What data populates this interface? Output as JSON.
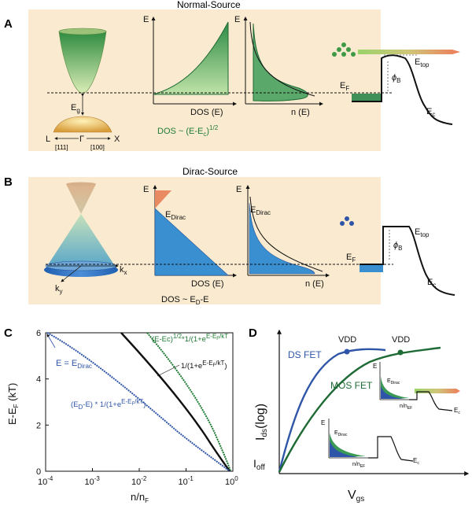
{
  "panel_a": {
    "letter": "A",
    "title": "Normal-Source",
    "band_labels": {
      "eg": "E",
      "eg_sub": "g",
      "L": "L",
      "gamma": "Γ",
      "X": "X",
      "dir1": "[111]",
      "dir2": "[100]"
    },
    "dos": {
      "ylabel": "E",
      "xlabel": "DOS (E)",
      "formula": "DOS ~ (E-E",
      "formula_sub": "c",
      "formula_end": ")",
      "formula_sup": "1/2"
    },
    "occ": {
      "ylabel": "E",
      "xlabel": "n (E)"
    },
    "band_diagram": {
      "ef": "E",
      "ef_sub": "F",
      "phi": "ϕ",
      "phi_sub": "B",
      "etop": "E",
      "etop_sub": "top",
      "ec": "E",
      "ec_sub": "c"
    }
  },
  "panel_b": {
    "letter": "B",
    "title": "Dirac-Source",
    "axes": {
      "kx": "k",
      "kx_sub": "x",
      "ky": "k",
      "ky_sub": "y"
    },
    "dos": {
      "ylabel": "E",
      "edirac": "E",
      "edirac_sub": "Dirac",
      "xlabel": "DOS (E)",
      "formula": "DOS ~ E",
      "formula_sub": "D",
      "formula_end": "-E"
    },
    "occ": {
      "ylabel": "E",
      "edirac": "E",
      "edirac_sub": "Dirac",
      "xlabel": "n (E)"
    },
    "band_diagram": {
      "ef": "E",
      "ef_sub": "F",
      "phi": "ϕ",
      "phi_sub": "B",
      "etop": "E",
      "etop_sub": "top",
      "ec": "E",
      "ec_sub": "c"
    }
  },
  "panel_c": {
    "letter": "C",
    "ylabel": "E-E",
    "ylabel_sub": "F",
    "ylabel_end": " (kT)",
    "xlabel": "n/n",
    "xlabel_sub": "F",
    "yticks": [
      "0",
      "2",
      "4",
      "6"
    ],
    "xticks": [
      {
        "base": "10",
        "exp": "-4"
      },
      {
        "base": "10",
        "exp": "-3"
      },
      {
        "base": "10",
        "exp": "-2"
      },
      {
        "base": "10",
        "exp": "-1"
      },
      {
        "base": "10",
        "exp": "0"
      }
    ],
    "annotations": {
      "edirac": "E = E",
      "edirac_sub": "Dirac",
      "green": "(E-Ec)",
      "green_sup": "1/2",
      "green_mid": "*1/(1+e",
      "green_sup2": "E-E",
      "green_sub2": "F",
      "green_end": "/kT",
      "black": "1/(1+e",
      "black_sup": "E-E",
      "black_sub": "F",
      "black_end": "/kT",
      "black_close": ")",
      "blue": "(E",
      "blue_sub": "D",
      "blue_mid": "-E) * 1/(1+e",
      "blue_sup": "E-E",
      "blue_sub2": "F",
      "blue_end": "/kT",
      "blue_close": ")"
    }
  },
  "panel_d": {
    "letter": "D",
    "ylabel": "I",
    "ylabel_sub": "ds",
    "ylabel_end": "(log)",
    "xlabel": "V",
    "xlabel_sub": "gs",
    "ioff": "I",
    "ioff_sub": "off",
    "ds_fet": "DS FET",
    "mos_fet": "MOS FET",
    "vdd1": "VDD",
    "vdd2": "VDD",
    "inset1": {
      "e": "E",
      "edirac": "E",
      "edirac_sub": "Dirac",
      "nx": "n/n",
      "nx_sub": "EF",
      "ec": "E",
      "ec_sub": "c"
    },
    "inset2": {
      "e": "E",
      "edirac": "E",
      "edirac_sub": "Dirac",
      "nx": "n/n",
      "nx_sub": "EF",
      "ec": "E",
      "ec_sub": "c"
    }
  },
  "colors": {
    "panel_bg": "#faebd0",
    "green": "#3a9a55",
    "dark_green": "#1f6b35",
    "blue": "#2f55a8",
    "light_blue": "#3a8fd1",
    "orange": "#e98a62",
    "black": "#111111"
  }
}
